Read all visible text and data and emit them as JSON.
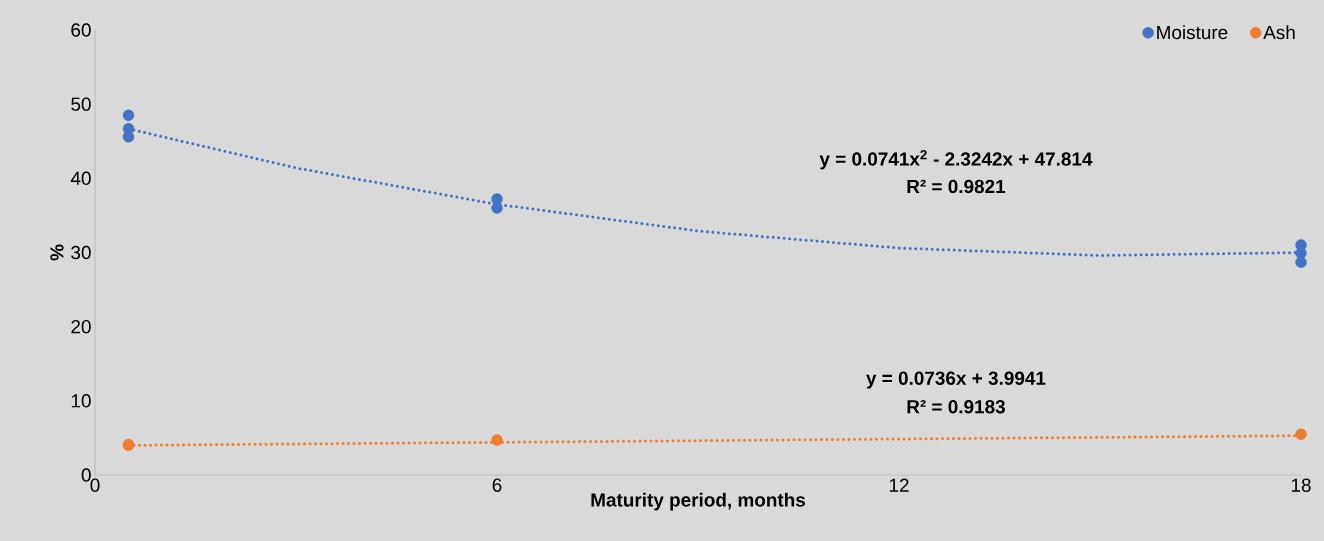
{
  "chart_data": {
    "type": "scatter",
    "xlabel": "Maturity period, months",
    "ylabel": "%",
    "xlim": [
      0,
      18
    ],
    "xticks": [
      0,
      6,
      12,
      18
    ],
    "ylim": [
      0,
      60
    ],
    "yticks": [
      0,
      10,
      20,
      30,
      40,
      50,
      60
    ],
    "series": [
      {
        "name": "Moisture",
        "color": "#4472c4",
        "marker": "circle",
        "x": [
          0.5,
          0.5,
          0.5,
          6,
          6,
          18,
          18,
          18
        ],
        "values": [
          48.5,
          46.7,
          45.6,
          37.2,
          36.0,
          31.0,
          29.9,
          28.7
        ]
      },
      {
        "name": "Ash",
        "color": "#ed7d31",
        "marker": "circle",
        "x": [
          0.5,
          0.5,
          6,
          18
        ],
        "values": [
          4.0,
          4.1,
          4.7,
          5.5
        ]
      },
      {
        "type": "line",
        "color": "#4472c4",
        "line_style": "dotted",
        "marker": "none",
        "x": [
          0.5,
          3,
          6,
          9,
          12,
          15,
          18
        ],
        "values": [
          46.7,
          41.4,
          36.5,
          32.9,
          30.6,
          29.6,
          30.0
        ]
      },
      {
        "type": "line",
        "color": "#ed7d31",
        "line_style": "dotted",
        "marker": "none",
        "x": [
          0.5,
          18
        ],
        "values": [
          4.0,
          5.3
        ]
      }
    ],
    "grid": false,
    "legend": "top right",
    "annotations": [
      "y = 0.0741x$^{2}$ - 2.3242x + 47.814",
      "R² = 0.9821",
      "y = 0.0736x + 3.9941",
      "R² = 0.9183"
    ]
  }
}
